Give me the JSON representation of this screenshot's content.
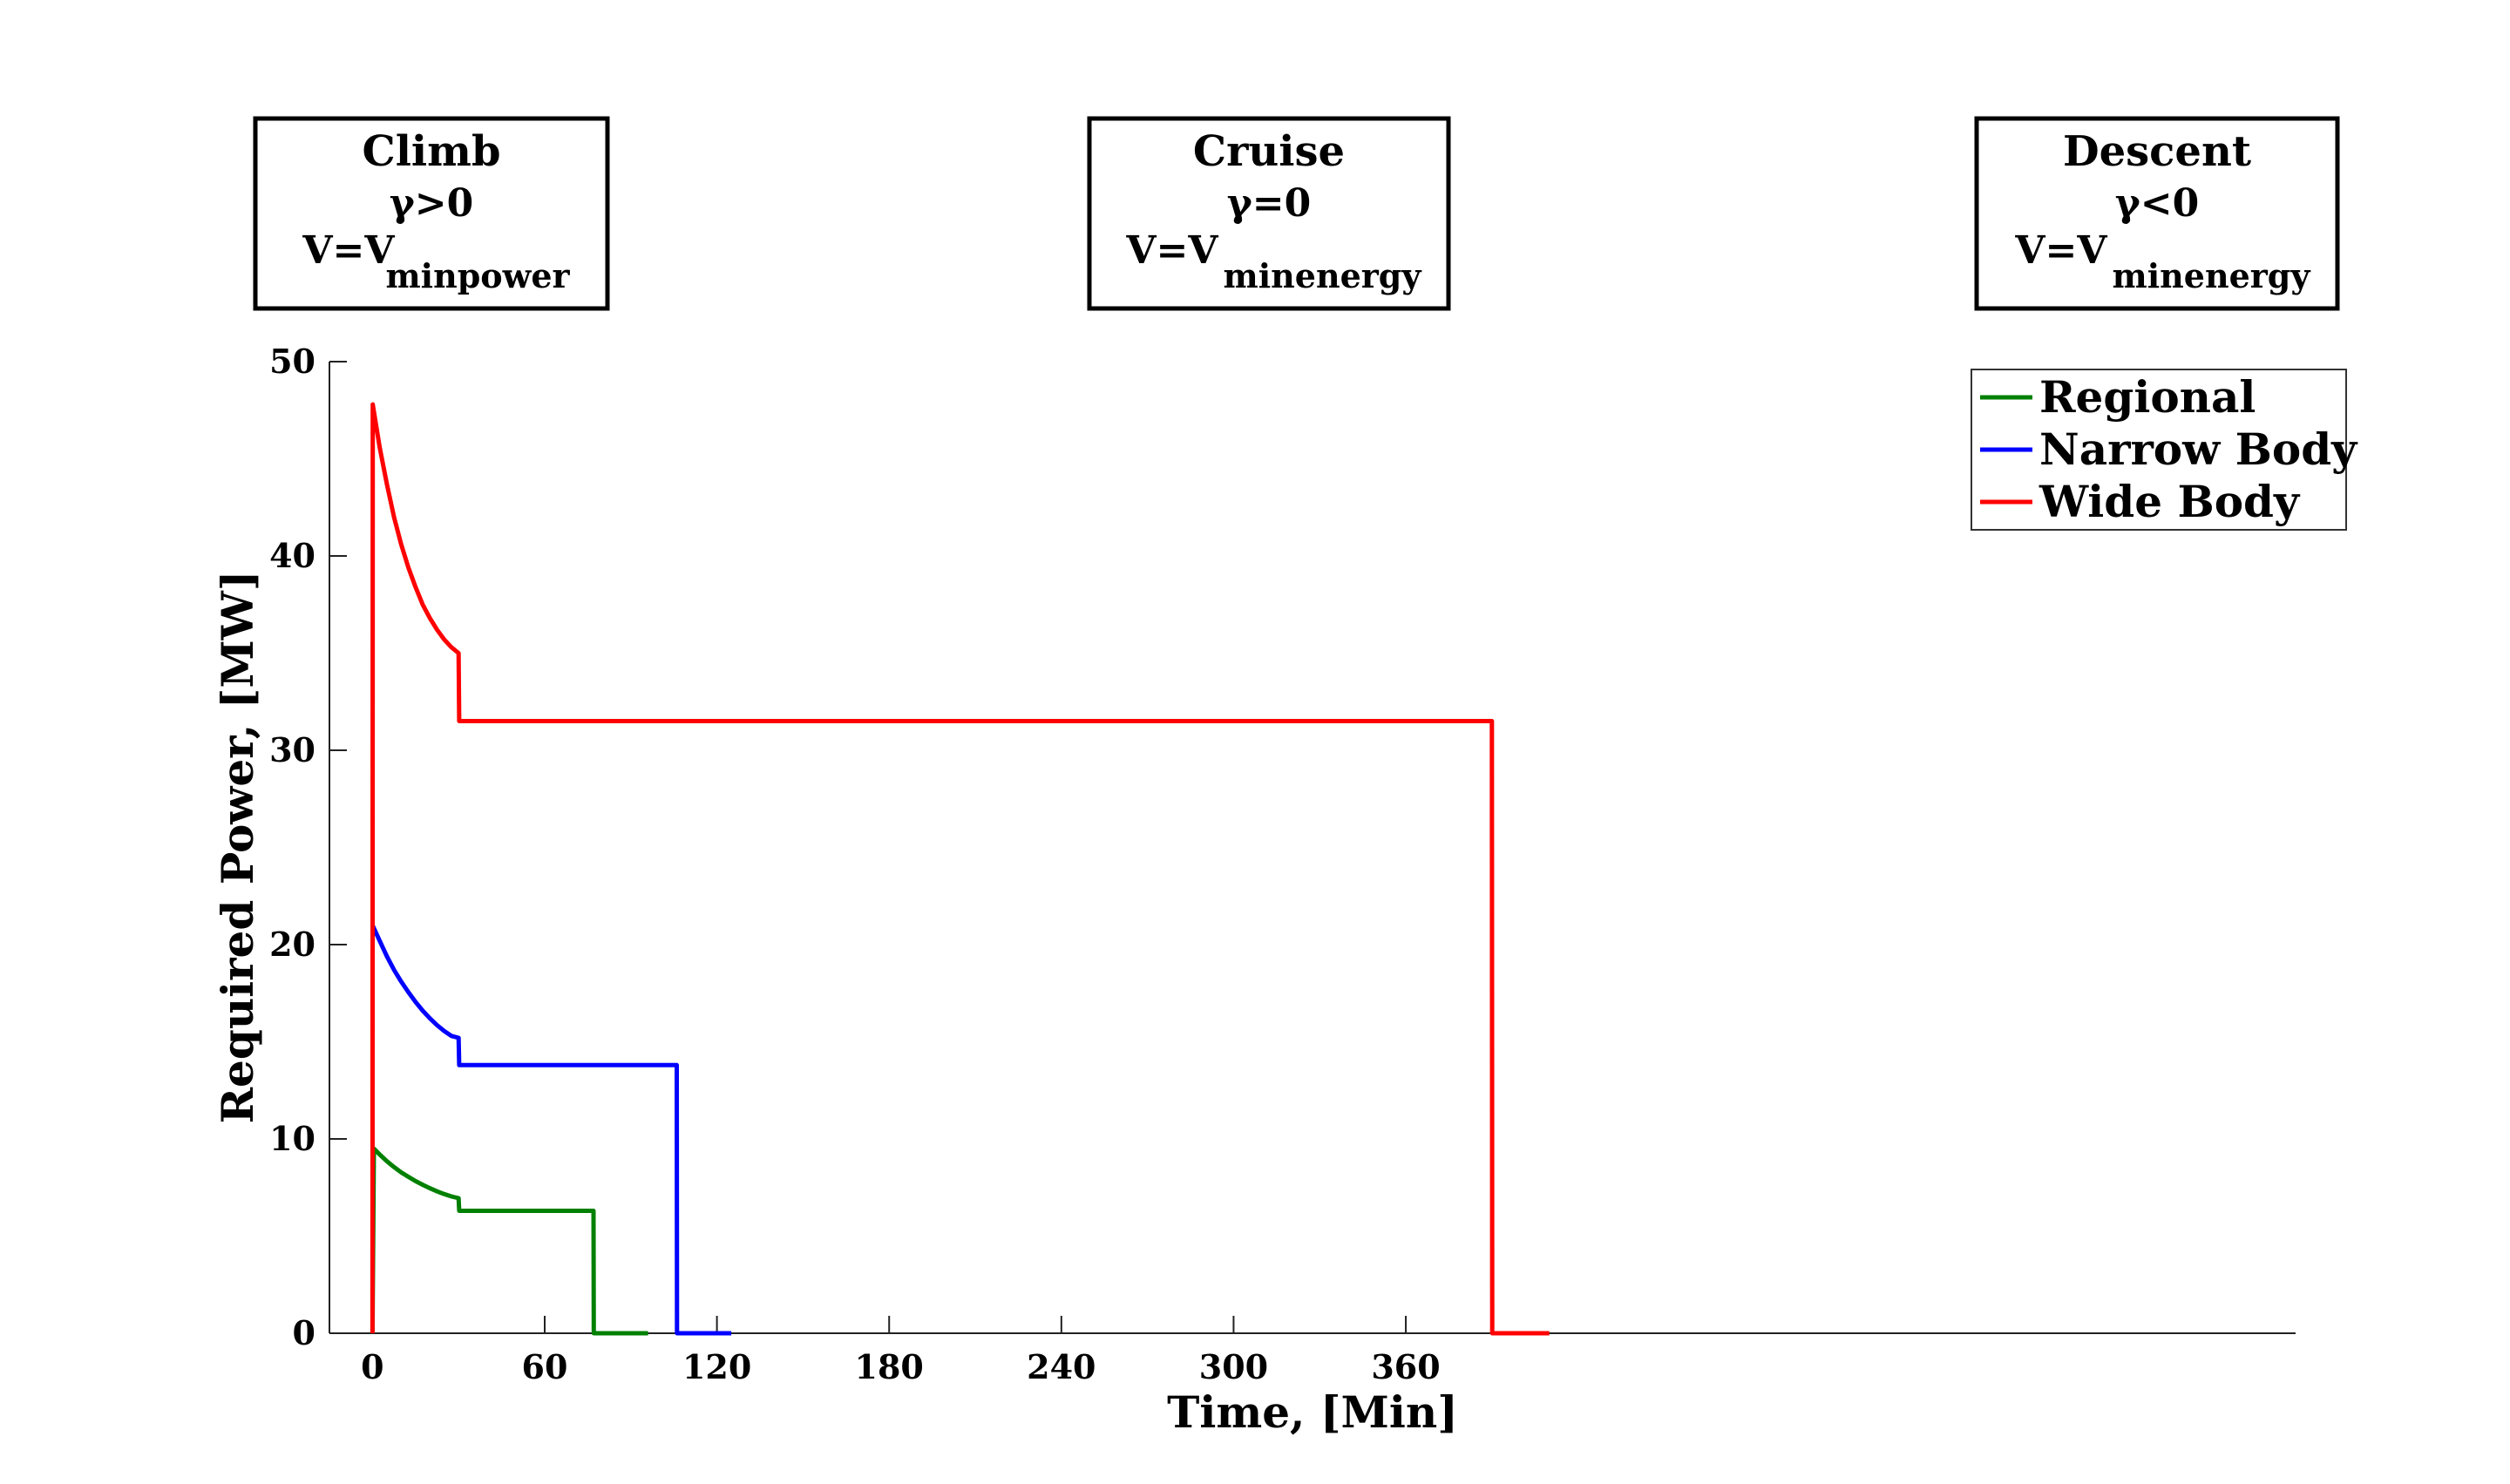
{
  "chart_data": {
    "type": "line",
    "xlabel": "Time, [Min]",
    "ylabel": "Required Power, [MW]",
    "xlim": [
      -15,
      670
    ],
    "ylim": [
      0,
      50
    ],
    "xticks": [
      0,
      60,
      120,
      180,
      240,
      300,
      360
    ],
    "yticks": [
      0,
      10,
      20,
      30,
      40,
      50
    ],
    "grid": false,
    "legend_position": "top-right",
    "series": [
      {
        "name": "Regional",
        "color": "#008000",
        "x": [
          0,
          0.5,
          2.5,
          5,
          7.5,
          10,
          12.5,
          15,
          17.5,
          20,
          22.5,
          25,
          27.5,
          30,
          30.2,
          31,
          77,
          77.1,
          96
        ],
        "y": [
          0,
          9.5,
          9.2,
          8.85,
          8.55,
          8.28,
          8.05,
          7.83,
          7.64,
          7.46,
          7.3,
          7.16,
          7.04,
          6.95,
          6.3,
          6.3,
          6.3,
          0,
          0
        ]
      },
      {
        "name": "Narrow Body",
        "color": "#0000ff",
        "x": [
          0,
          2.5,
          5,
          7.5,
          10,
          12.5,
          15,
          17.5,
          20,
          22.5,
          25,
          27.5,
          30,
          30.2,
          31,
          106,
          106.1,
          125
        ],
        "y": [
          21,
          20.2,
          19.4,
          18.7,
          18.1,
          17.55,
          17.05,
          16.6,
          16.2,
          15.85,
          15.55,
          15.3,
          15.2,
          13.8,
          13.8,
          13.8,
          0,
          0
        ]
      },
      {
        "name": "Wide Body",
        "color": "#ff0000",
        "x": [
          0,
          0.1,
          2.5,
          5,
          7.5,
          10,
          12.5,
          15,
          17.5,
          20,
          22.5,
          25,
          27.5,
          30,
          30.2,
          31,
          390,
          390.1,
          410
        ],
        "y": [
          0,
          47.8,
          45.6,
          43.7,
          42.0,
          40.6,
          39.4,
          38.4,
          37.5,
          36.8,
          36.2,
          35.7,
          35.3,
          35.0,
          31.5,
          31.5,
          31.5,
          0,
          0
        ]
      }
    ]
  },
  "phases": [
    {
      "title": "Climb",
      "gamma": "γ>0",
      "velocity": "V=V",
      "sub": "minpower"
    },
    {
      "title": "Cruise",
      "gamma": "γ=0",
      "velocity": "V=V",
      "sub": "minenergy"
    },
    {
      "title": "Descent",
      "gamma": "γ<0",
      "velocity": "V=V",
      "sub": "minenergy"
    }
  ]
}
